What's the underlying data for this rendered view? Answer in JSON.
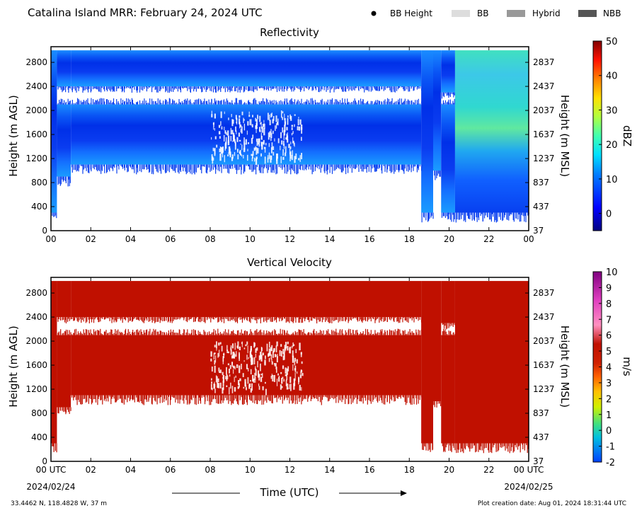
{
  "header": {
    "title": "Catalina Island MRR:  February 24, 2024 UTC",
    "legend": [
      {
        "label": "BB Height",
        "kind": "dot",
        "color": "#000000"
      },
      {
        "label": "BB",
        "kind": "box",
        "color": "#dddddd"
      },
      {
        "label": "Hybrid",
        "kind": "box",
        "color": "#999999"
      },
      {
        "label": "NBB",
        "kind": "box",
        "color": "#555555"
      }
    ]
  },
  "footer": {
    "location": "33.4462 N, 118.4828 W, 37 m",
    "creation": "Plot creation date: Aug 01, 2024 18:31:44 UTC",
    "time_label": "Time (UTC)",
    "start_date": "2024/02/24",
    "end_date": "2024/02/25"
  },
  "chart_data": [
    {
      "type": "heatmap",
      "title": "Reflectivity",
      "ylabel": "Height (m AGL)",
      "ylabel_right": "Height (m MSL)",
      "x_ticks": [
        "00",
        "02",
        "04",
        "06",
        "08",
        "10",
        "12",
        "14",
        "16",
        "18",
        "20",
        "22",
        "00"
      ],
      "xlim": [
        0,
        24
      ],
      "ylim": [
        0,
        3060
      ],
      "y_ticks": [
        0,
        400,
        800,
        1200,
        1600,
        2000,
        2400,
        2800
      ],
      "y_ticks_right": [
        37,
        437,
        837,
        1237,
        1637,
        2037,
        2437,
        2837
      ],
      "colorbar": {
        "label": "dBZ",
        "min": -5,
        "max": 50,
        "ticks": [
          0,
          10,
          20,
          30,
          40,
          50
        ]
      },
      "echo_regions": [
        {
          "t_start": 0,
          "t_end": 0.3,
          "bottom": 300,
          "top": 3000,
          "gaps": []
        },
        {
          "t_start": 0.3,
          "t_end": 1.0,
          "bottom": 900,
          "top": 3000,
          "gaps": [
            [
              2100,
              2400
            ]
          ]
        },
        {
          "t_start": 1.0,
          "t_end": 18.6,
          "bottom": 1100,
          "top": 3000,
          "gaps": [
            [
              2100,
              2400
            ]
          ]
        },
        {
          "t_start": 18.6,
          "t_end": 19.2,
          "bottom": 300,
          "top": 3000,
          "gaps": []
        },
        {
          "t_start": 19.2,
          "t_end": 19.6,
          "bottom": 1000,
          "top": 3000,
          "gaps": []
        },
        {
          "t_start": 19.6,
          "t_end": 20.3,
          "bottom": 300,
          "top": 3000,
          "gaps": [
            [
              2100,
              2300
            ]
          ]
        },
        {
          "t_start": 20.3,
          "t_end": 24,
          "bottom": 300,
          "top": 3000,
          "gaps": []
        }
      ]
    },
    {
      "type": "heatmap",
      "title": "Vertical Velocity",
      "ylabel": "Height (m AGL)",
      "ylabel_right": "Height (m MSL)",
      "x_ticks": [
        "00 UTC",
        "02",
        "04",
        "06",
        "08",
        "10",
        "12",
        "14",
        "16",
        "18",
        "20",
        "22",
        "00 UTC"
      ],
      "xlim": [
        0,
        24
      ],
      "ylim": [
        0,
        3060
      ],
      "y_ticks": [
        0,
        400,
        800,
        1200,
        1600,
        2000,
        2400,
        2800
      ],
      "y_ticks_right": [
        37,
        437,
        837,
        1237,
        1637,
        2037,
        2437,
        2837
      ],
      "colorbar": {
        "label": "m/s",
        "min": -2,
        "max": 10,
        "ticks": [
          -2,
          -1,
          0,
          1,
          2,
          3,
          4,
          5,
          6,
          7,
          8,
          9,
          10
        ]
      },
      "fill_color": "#c01000",
      "echo_regions": [
        {
          "t_start": 0,
          "t_end": 0.3,
          "bottom": 300,
          "top": 3000,
          "gaps": []
        },
        {
          "t_start": 0.3,
          "t_end": 1.0,
          "bottom": 900,
          "top": 3000,
          "gaps": [
            [
              2100,
              2400
            ]
          ]
        },
        {
          "t_start": 1.0,
          "t_end": 18.6,
          "bottom": 1100,
          "top": 3000,
          "gaps": [
            [
              2100,
              2400
            ]
          ]
        },
        {
          "t_start": 18.6,
          "t_end": 19.2,
          "bottom": 300,
          "top": 3000,
          "gaps": []
        },
        {
          "t_start": 19.2,
          "t_end": 19.6,
          "bottom": 1000,
          "top": 3000,
          "gaps": []
        },
        {
          "t_start": 19.6,
          "t_end": 20.3,
          "bottom": 300,
          "top": 3000,
          "gaps": [
            [
              2100,
              2300
            ]
          ]
        },
        {
          "t_start": 20.3,
          "t_end": 24,
          "bottom": 300,
          "top": 3000,
          "gaps": []
        }
      ]
    }
  ]
}
